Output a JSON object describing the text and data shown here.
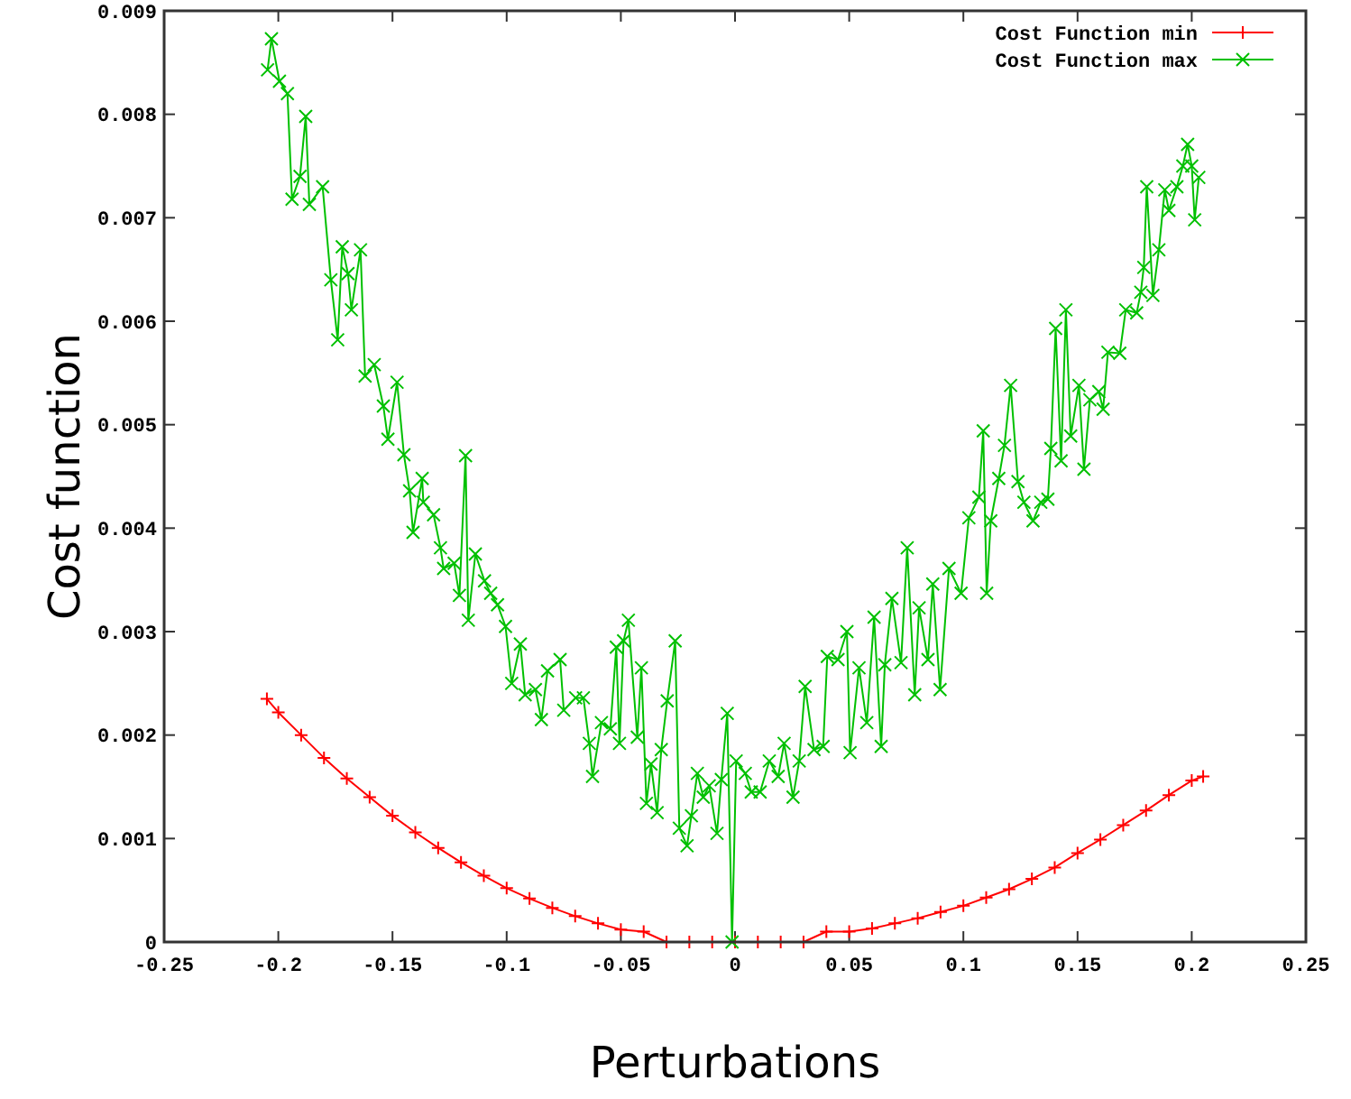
{
  "chart_data": {
    "type": "line",
    "xlabel": "Perturbations",
    "ylabel": "Cost function",
    "xlim": [
      -0.25,
      0.25
    ],
    "xticks": [
      -0.25,
      -0.2,
      -0.15,
      -0.1,
      -0.05,
      0,
      0.05,
      0.1,
      0.15,
      0.2,
      0.25
    ],
    "ylim": [
      0,
      0.009
    ],
    "yticks": [
      0,
      0.001,
      0.002,
      0.003,
      0.004,
      0.005,
      0.006,
      0.007,
      0.008,
      0.009
    ],
    "legend": "top right",
    "grid": false,
    "line_style": "solid",
    "series": [
      {
        "name": "Cost Function min",
        "color": "#ff0000",
        "marker": "plus",
        "x": [
          -0.205,
          -0.2,
          -0.19,
          -0.18,
          -0.17,
          -0.16,
          -0.15,
          -0.14,
          -0.13,
          -0.12,
          -0.11,
          -0.1,
          -0.09,
          -0.08,
          -0.07,
          -0.06,
          -0.05,
          -0.04,
          -0.03,
          -0.02,
          -0.01,
          0,
          0.01,
          0.02,
          0.03,
          0.04,
          0.05,
          0.06,
          0.07,
          0.08,
          0.09,
          0.1,
          0.11,
          0.12,
          0.13,
          0.14,
          0.15,
          0.16,
          0.17,
          0.18,
          0.19,
          0.2,
          0.205
        ],
        "values": [
          0.00235,
          0.00222,
          0.002,
          0.00178,
          0.00158,
          0.0014,
          0.00122,
          0.00106,
          0.00091,
          0.00077,
          0.00064,
          0.00052,
          0.00042,
          0.00033,
          0.00025,
          0.00018,
          0.00012,
          0.0001,
          0,
          0,
          0,
          0,
          0,
          0,
          0,
          0.0001,
          0.0001,
          0.00013,
          0.00018,
          0.00023,
          0.00029,
          0.00035,
          0.00043,
          0.00051,
          0.00061,
          0.00072,
          0.00086,
          0.00099,
          0.00113,
          0.00127,
          0.00142,
          0.00156,
          0.0016
        ]
      },
      {
        "name": "Cost Function max",
        "color": "#00c000",
        "marker": "cross",
        "x": [
          -0.2047,
          -0.203,
          -0.1995,
          -0.196,
          -0.194,
          -0.1905,
          -0.188,
          -0.1864,
          -0.1806,
          -0.177,
          -0.174,
          -0.172,
          -0.1695,
          -0.168,
          -0.164,
          -0.162,
          -0.158,
          -0.154,
          -0.152,
          -0.148,
          -0.145,
          -0.1425,
          -0.141,
          -0.137,
          -0.1365,
          -0.132,
          -0.129,
          -0.1276,
          -0.123,
          -0.1207,
          -0.118,
          -0.1168,
          -0.1137,
          -0.1097,
          -0.107,
          -0.104,
          -0.1005,
          -0.0978,
          -0.094,
          -0.0919,
          -0.0874,
          -0.0848,
          -0.0821,
          -0.0766,
          -0.075,
          -0.0698,
          -0.0664,
          -0.0638,
          -0.0624,
          -0.0585,
          -0.0546,
          -0.052,
          -0.0506,
          -0.0488,
          -0.0467,
          -0.0428,
          -0.041,
          -0.0388,
          -0.0368,
          -0.0341,
          -0.0323,
          -0.0297,
          -0.0262,
          -0.0244,
          -0.021,
          -0.0191,
          -0.0165,
          -0.0139,
          -0.0113,
          -0.0079,
          -0.006,
          -0.0034,
          -0.0013,
          0.0005,
          0.0045,
          0.0071,
          0.011,
          0.015,
          0.0189,
          0.0215,
          0.0254,
          0.0281,
          0.0307,
          0.0346,
          0.0386,
          0.0404,
          0.0451,
          0.049,
          0.0504,
          0.0543,
          0.0577,
          0.0609,
          0.064,
          0.0656,
          0.0687,
          0.0727,
          0.0754,
          0.0787,
          0.0806,
          0.0845,
          0.0866,
          0.0898,
          0.0937,
          0.099,
          0.1024,
          0.1068,
          0.1087,
          0.1102,
          0.112,
          0.1155,
          0.118,
          0.1207,
          0.1239,
          0.1265,
          0.1305,
          0.1339,
          0.137,
          0.1383,
          0.1404,
          0.1428,
          0.1449,
          0.147,
          0.1506,
          0.1528,
          0.1554,
          0.1593,
          0.1612,
          0.1633,
          0.1685,
          0.1711,
          0.1759,
          0.1777,
          0.179,
          0.1803,
          0.183,
          0.1856,
          0.1882,
          0.19,
          0.1935,
          0.1961,
          0.1982,
          0.2,
          0.2013,
          0.2031
        ],
        "values": [
          0.00843,
          0.00873,
          0.00832,
          0.0082,
          0.00718,
          0.0074,
          0.00798,
          0.00713,
          0.0073,
          0.0064,
          0.00582,
          0.00672,
          0.00646,
          0.00611,
          0.00669,
          0.00547,
          0.00558,
          0.00518,
          0.00486,
          0.00541,
          0.00471,
          0.00436,
          0.00396,
          0.00448,
          0.00425,
          0.00413,
          0.00381,
          0.00361,
          0.00366,
          0.00335,
          0.0047,
          0.00311,
          0.00375,
          0.00349,
          0.00337,
          0.00326,
          0.00305,
          0.0025,
          0.00288,
          0.00239,
          0.00244,
          0.00215,
          0.00262,
          0.00273,
          0.00224,
          0.00236,
          0.00236,
          0.00192,
          0.0016,
          0.00212,
          0.00206,
          0.00285,
          0.00192,
          0.00291,
          0.00311,
          0.00198,
          0.00265,
          0.00134,
          0.00172,
          0.00125,
          0.00186,
          0.00233,
          0.00291,
          0.0011,
          0.00093,
          0.00122,
          0.00163,
          0.0014,
          0.00151,
          0.00105,
          0.00157,
          0.00221,
          0,
          0.00175,
          0.00163,
          0.00145,
          0.00145,
          0.00175,
          0.0016,
          0.00192,
          0.0014,
          0.00175,
          0.00247,
          0.00186,
          0.00189,
          0.00276,
          0.00273,
          0.003,
          0.00183,
          0.00265,
          0.00212,
          0.00314,
          0.00189,
          0.00268,
          0.00332,
          0.0027,
          0.00381,
          0.00239,
          0.00323,
          0.00273,
          0.00346,
          0.00244,
          0.00361,
          0.00337,
          0.0041,
          0.0043,
          0.00494,
          0.00337,
          0.00407,
          0.00448,
          0.0048,
          0.00538,
          0.00445,
          0.00425,
          0.00407,
          0.00425,
          0.00428,
          0.00477,
          0.00593,
          0.00465,
          0.00611,
          0.00489,
          0.00538,
          0.00457,
          0.00524,
          0.00532,
          0.00515,
          0.0057,
          0.00569,
          0.00611,
          0.00608,
          0.00628,
          0.00652,
          0.0073,
          0.00625,
          0.00669,
          0.00727,
          0.00707,
          0.0073,
          0.0075,
          0.00771,
          0.0075,
          0.00698,
          0.00739
        ]
      }
    ]
  }
}
